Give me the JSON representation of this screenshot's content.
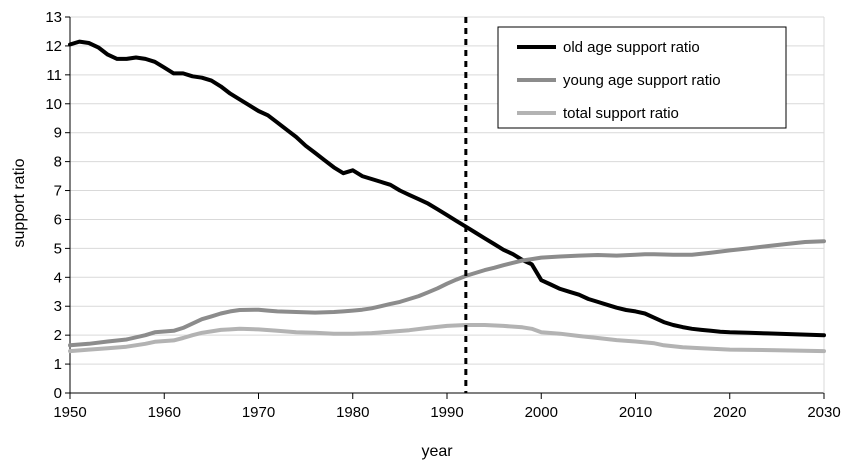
{
  "chart_data": {
    "type": "line",
    "xlabel": "year",
    "ylabel": "support ratio",
    "xlim": [
      1950,
      2030
    ],
    "ylim": [
      0,
      13
    ],
    "xticks": [
      1950,
      1960,
      1970,
      1980,
      1990,
      2000,
      2010,
      2020,
      2030
    ],
    "yticks": [
      0,
      1,
      2,
      3,
      4,
      5,
      6,
      7,
      8,
      9,
      10,
      11,
      12,
      13
    ],
    "grid": "horizontal",
    "legend_position": "top-right",
    "reference_line": {
      "x": 1992,
      "style": "dotted"
    },
    "series": [
      {
        "name": "old age support ratio",
        "color": "#000000",
        "points": [
          [
            1950,
            12.05
          ],
          [
            1951,
            12.15
          ],
          [
            1952,
            12.1
          ],
          [
            1953,
            11.95
          ],
          [
            1954,
            11.7
          ],
          [
            1955,
            11.55
          ],
          [
            1956,
            11.55
          ],
          [
            1957,
            11.6
          ],
          [
            1958,
            11.55
          ],
          [
            1959,
            11.45
          ],
          [
            1960,
            11.25
          ],
          [
            1961,
            11.05
          ],
          [
            1962,
            11.05
          ],
          [
            1963,
            10.95
          ],
          [
            1964,
            10.9
          ],
          [
            1965,
            10.8
          ],
          [
            1966,
            10.6
          ],
          [
            1967,
            10.35
          ],
          [
            1968,
            10.15
          ],
          [
            1969,
            9.95
          ],
          [
            1970,
            9.75
          ],
          [
            1971,
            9.6
          ],
          [
            1972,
            9.35
          ],
          [
            1973,
            9.1
          ],
          [
            1974,
            8.85
          ],
          [
            1975,
            8.55
          ],
          [
            1976,
            8.3
          ],
          [
            1977,
            8.05
          ],
          [
            1978,
            7.8
          ],
          [
            1979,
            7.6
          ],
          [
            1980,
            7.7
          ],
          [
            1981,
            7.5
          ],
          [
            1982,
            7.4
          ],
          [
            1983,
            7.3
          ],
          [
            1984,
            7.2
          ],
          [
            1985,
            7.0
          ],
          [
            1986,
            6.85
          ],
          [
            1987,
            6.7
          ],
          [
            1988,
            6.55
          ],
          [
            1989,
            6.35
          ],
          [
            1990,
            6.15
          ],
          [
            1991,
            5.95
          ],
          [
            1992,
            5.75
          ],
          [
            1993,
            5.55
          ],
          [
            1994,
            5.35
          ],
          [
            1995,
            5.15
          ],
          [
            1996,
            4.95
          ],
          [
            1997,
            4.8
          ],
          [
            1998,
            4.6
          ],
          [
            1999,
            4.45
          ],
          [
            2000,
            3.9
          ],
          [
            2001,
            3.75
          ],
          [
            2002,
            3.6
          ],
          [
            2003,
            3.5
          ],
          [
            2004,
            3.4
          ],
          [
            2005,
            3.25
          ],
          [
            2006,
            3.15
          ],
          [
            2007,
            3.05
          ],
          [
            2008,
            2.95
          ],
          [
            2009,
            2.87
          ],
          [
            2010,
            2.82
          ],
          [
            2011,
            2.75
          ],
          [
            2012,
            2.6
          ],
          [
            2013,
            2.45
          ],
          [
            2014,
            2.35
          ],
          [
            2015,
            2.28
          ],
          [
            2016,
            2.22
          ],
          [
            2017,
            2.18
          ],
          [
            2018,
            2.15
          ],
          [
            2019,
            2.12
          ],
          [
            2020,
            2.1
          ],
          [
            2022,
            2.08
          ],
          [
            2024,
            2.06
          ],
          [
            2026,
            2.04
          ],
          [
            2028,
            2.02
          ],
          [
            2030,
            2.0
          ]
        ]
      },
      {
        "name": "young age support ratio",
        "color": "#8c8c8c",
        "points": [
          [
            1950,
            1.65
          ],
          [
            1952,
            1.7
          ],
          [
            1954,
            1.78
          ],
          [
            1956,
            1.85
          ],
          [
            1958,
            2.0
          ],
          [
            1959,
            2.1
          ],
          [
            1961,
            2.15
          ],
          [
            1962,
            2.25
          ],
          [
            1963,
            2.4
          ],
          [
            1964,
            2.55
          ],
          [
            1965,
            2.65
          ],
          [
            1966,
            2.75
          ],
          [
            1967,
            2.82
          ],
          [
            1968,
            2.87
          ],
          [
            1970,
            2.88
          ],
          [
            1971,
            2.85
          ],
          [
            1972,
            2.82
          ],
          [
            1974,
            2.8
          ],
          [
            1976,
            2.78
          ],
          [
            1978,
            2.8
          ],
          [
            1979,
            2.82
          ],
          [
            1980,
            2.85
          ],
          [
            1981,
            2.88
          ],
          [
            1982,
            2.93
          ],
          [
            1983,
            3.0
          ],
          [
            1984,
            3.08
          ],
          [
            1985,
            3.15
          ],
          [
            1986,
            3.25
          ],
          [
            1987,
            3.35
          ],
          [
            1988,
            3.48
          ],
          [
            1989,
            3.62
          ],
          [
            1990,
            3.78
          ],
          [
            1991,
            3.92
          ],
          [
            1992,
            4.05
          ],
          [
            1993,
            4.15
          ],
          [
            1994,
            4.25
          ],
          [
            1995,
            4.33
          ],
          [
            1996,
            4.42
          ],
          [
            1997,
            4.5
          ],
          [
            1998,
            4.58
          ],
          [
            1999,
            4.63
          ],
          [
            2000,
            4.68
          ],
          [
            2002,
            4.72
          ],
          [
            2004,
            4.75
          ],
          [
            2006,
            4.77
          ],
          [
            2008,
            4.75
          ],
          [
            2010,
            4.78
          ],
          [
            2011,
            4.8
          ],
          [
            2012,
            4.8
          ],
          [
            2014,
            4.78
          ],
          [
            2016,
            4.78
          ],
          [
            2018,
            4.85
          ],
          [
            2020,
            4.93
          ],
          [
            2022,
            5.0
          ],
          [
            2024,
            5.08
          ],
          [
            2026,
            5.15
          ],
          [
            2028,
            5.22
          ],
          [
            2030,
            5.25
          ]
        ]
      },
      {
        "name": "total support ratio",
        "color": "#b3b3b3",
        "points": [
          [
            1950,
            1.45
          ],
          [
            1952,
            1.5
          ],
          [
            1954,
            1.55
          ],
          [
            1956,
            1.6
          ],
          [
            1958,
            1.7
          ],
          [
            1959,
            1.77
          ],
          [
            1961,
            1.82
          ],
          [
            1962,
            1.9
          ],
          [
            1963,
            2.0
          ],
          [
            1964,
            2.08
          ],
          [
            1965,
            2.13
          ],
          [
            1966,
            2.18
          ],
          [
            1967,
            2.2
          ],
          [
            1968,
            2.22
          ],
          [
            1970,
            2.2
          ],
          [
            1972,
            2.15
          ],
          [
            1974,
            2.1
          ],
          [
            1976,
            2.08
          ],
          [
            1978,
            2.05
          ],
          [
            1980,
            2.05
          ],
          [
            1982,
            2.07
          ],
          [
            1984,
            2.12
          ],
          [
            1986,
            2.17
          ],
          [
            1988,
            2.25
          ],
          [
            1990,
            2.32
          ],
          [
            1992,
            2.35
          ],
          [
            1994,
            2.35
          ],
          [
            1996,
            2.32
          ],
          [
            1998,
            2.27
          ],
          [
            1999,
            2.22
          ],
          [
            2000,
            2.1
          ],
          [
            2002,
            2.05
          ],
          [
            2004,
            1.97
          ],
          [
            2006,
            1.9
          ],
          [
            2008,
            1.83
          ],
          [
            2010,
            1.78
          ],
          [
            2012,
            1.72
          ],
          [
            2013,
            1.65
          ],
          [
            2015,
            1.58
          ],
          [
            2017,
            1.55
          ],
          [
            2020,
            1.5
          ],
          [
            2025,
            1.48
          ],
          [
            2030,
            1.45
          ]
        ]
      }
    ]
  }
}
